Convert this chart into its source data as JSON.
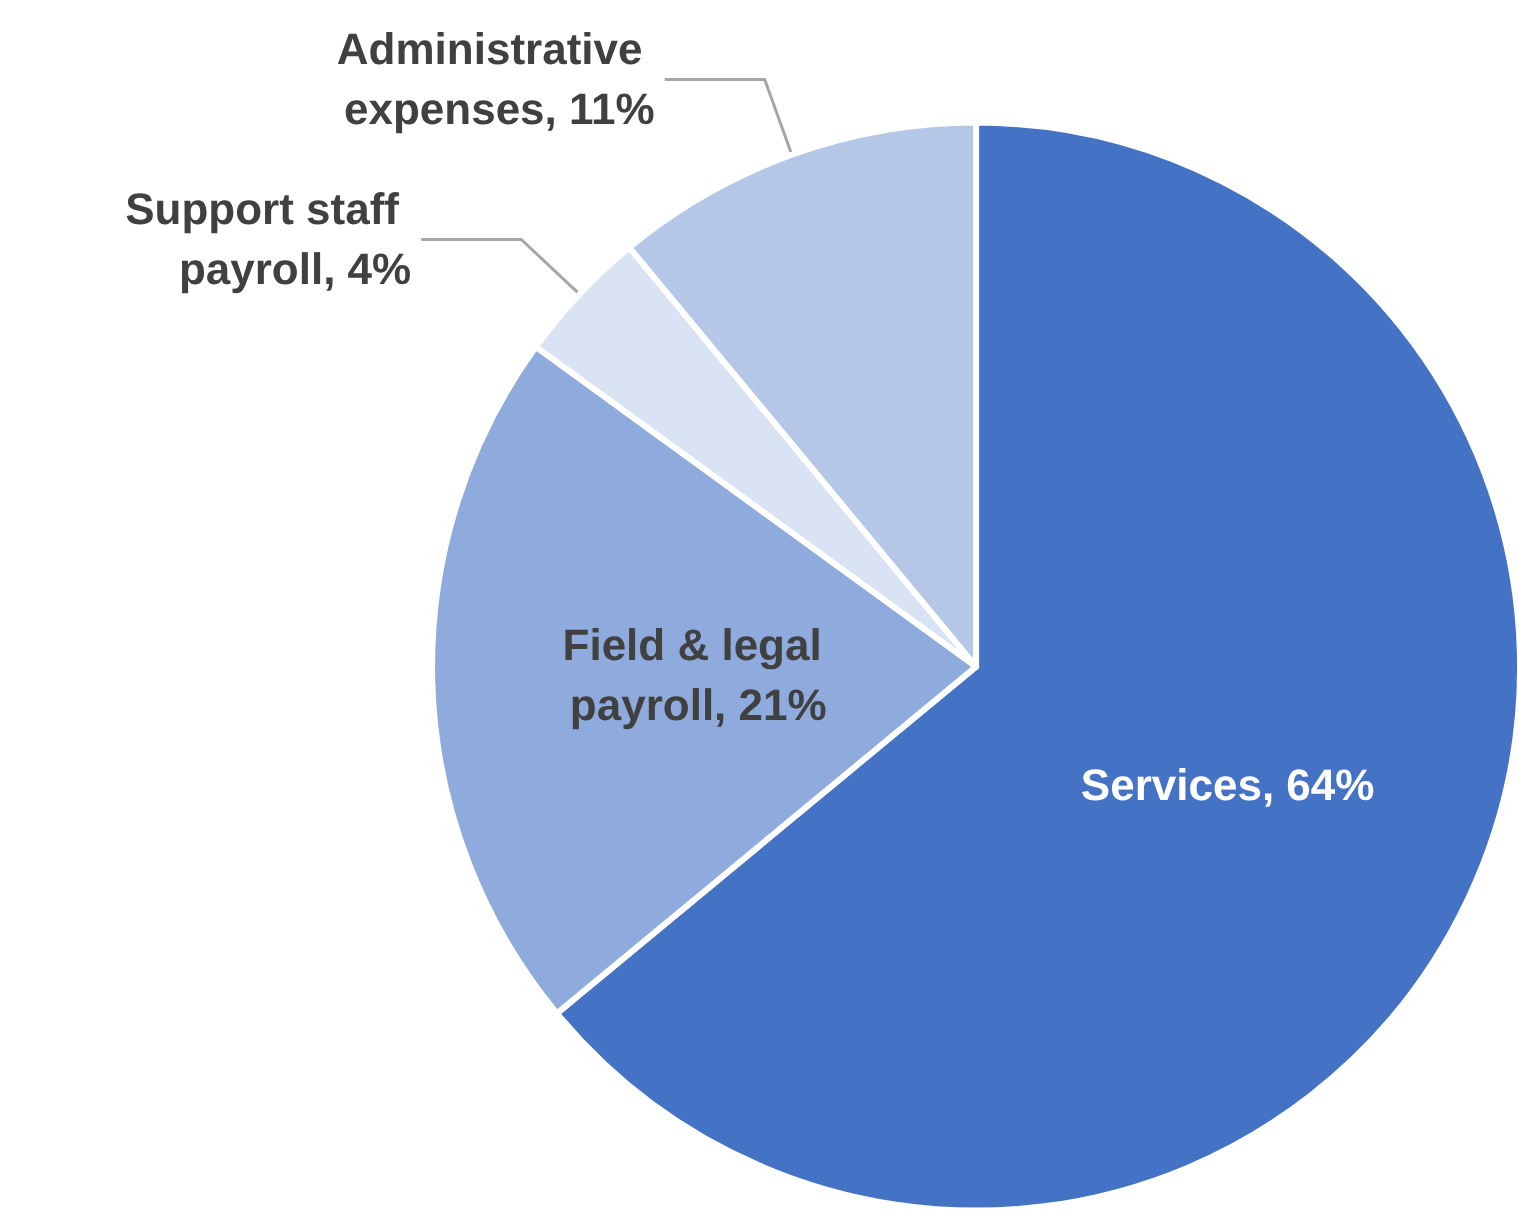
{
  "chart_data": {
    "type": "pie",
    "categories": [
      "Services",
      "Field & legal payroll",
      "Support staff payroll",
      "Administrative expenses"
    ],
    "values": [
      64,
      21,
      4,
      11
    ],
    "value_labels": [
      "64%",
      "21%",
      "4%",
      "11%"
    ],
    "colors": [
      "#4472c4",
      "#8faadc",
      "#dae3f3",
      "#b4c7e7"
    ],
    "legend": false
  }
}
